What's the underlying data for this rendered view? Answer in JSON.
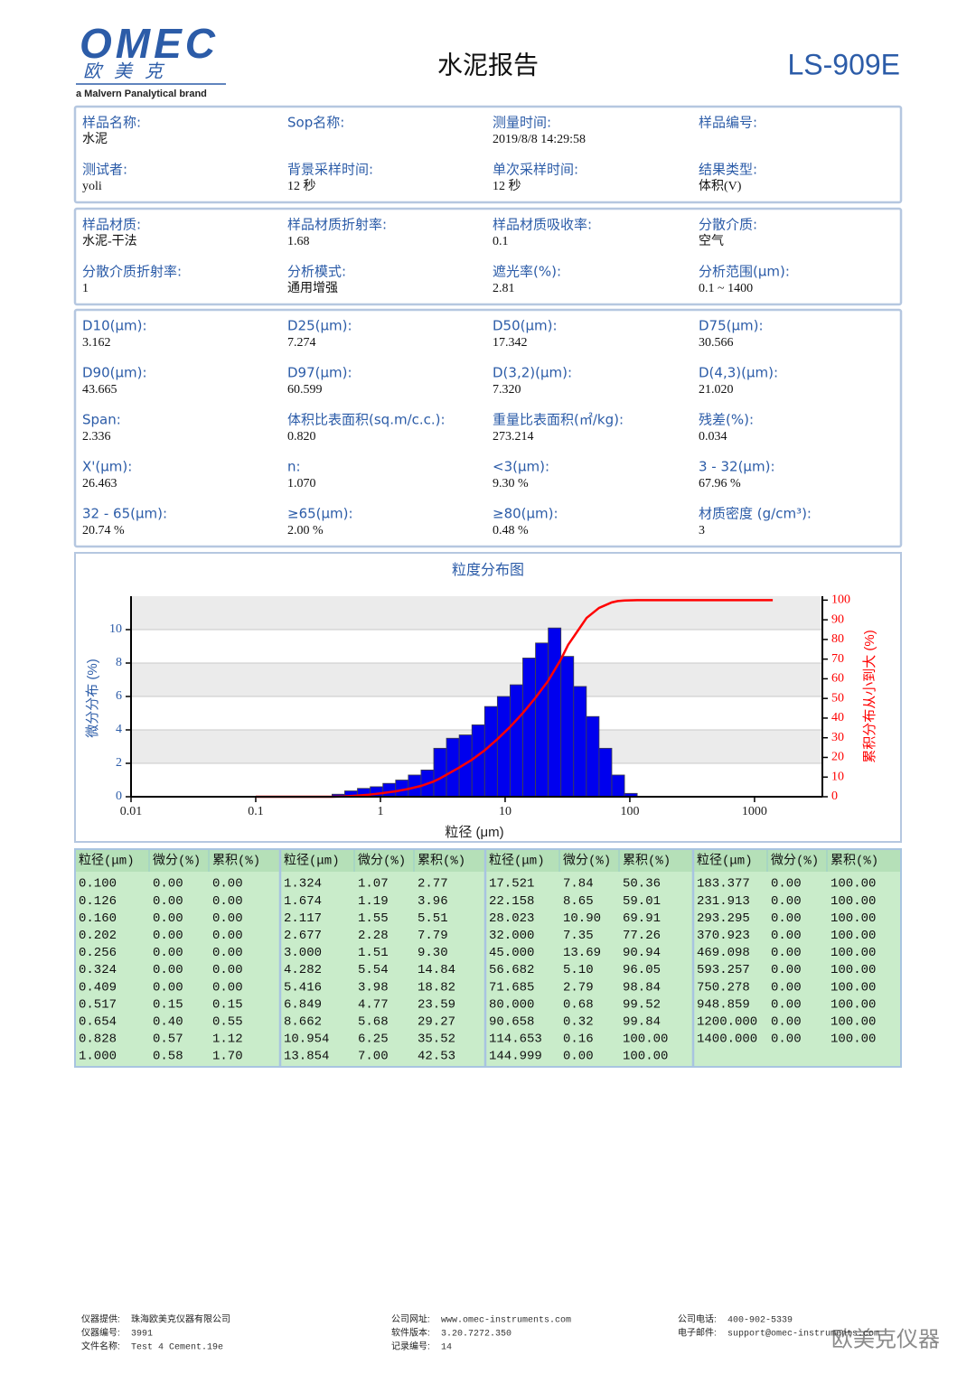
{
  "header": {
    "logo": "OMEC",
    "logo_cn": "欧美克",
    "brand": "a Malvern Panalytical brand",
    "title": "水泥报告",
    "model": "LS-909E"
  },
  "info": {
    "sections": [
      {
        "fields": [
          {
            "label": "样品名称:",
            "value": "水泥"
          },
          {
            "label": "Sop名称:",
            "value": ""
          },
          {
            "label": "测量时间:",
            "value": "2019/8/8 14:29:58"
          },
          {
            "label": "样品编号:",
            "value": ""
          },
          {
            "label": "测试者:",
            "value": "yoli"
          },
          {
            "label": "背景采样时间:",
            "value": "12 秒"
          },
          {
            "label": "单次采样时间:",
            "value": "12 秒"
          },
          {
            "label": "结果类型:",
            "value": "体积(V)"
          }
        ]
      },
      {
        "fields": [
          {
            "label": "样品材质:",
            "value": "水泥-干法"
          },
          {
            "label": "样品材质折射率:",
            "value": "1.68"
          },
          {
            "label": "样品材质吸收率:",
            "value": "0.1"
          },
          {
            "label": "分散介质:",
            "value": "空气"
          },
          {
            "label": "分散介质折射率:",
            "value": "1"
          },
          {
            "label": "分析模式:",
            "value": "通用增强"
          },
          {
            "label": "遮光率(%):",
            "value": "2.81"
          },
          {
            "label": "分析范围(μm):",
            "value": "0.1 ~ 1400"
          }
        ]
      },
      {
        "fields": [
          {
            "label": "D10(μm):",
            "value": "3.162"
          },
          {
            "label": "D25(μm):",
            "value": "7.274"
          },
          {
            "label": "D50(μm):",
            "value": "17.342"
          },
          {
            "label": "D75(μm):",
            "value": "30.566"
          },
          {
            "label": "D90(μm):",
            "value": "43.665"
          },
          {
            "label": "D97(μm):",
            "value": "60.599"
          },
          {
            "label": "D(3,2)(μm):",
            "value": "7.320"
          },
          {
            "label": "D(4,3)(μm):",
            "value": "21.020"
          },
          {
            "label": "Span:",
            "value": "2.336"
          },
          {
            "label": "体积比表面积(sq.m/c.c.):",
            "value": "0.820"
          },
          {
            "label": "重量比表面积(㎡/kg):",
            "value": "273.214"
          },
          {
            "label": "残差(%):",
            "value": "0.034"
          },
          {
            "label": "X'(μm):",
            "value": "26.463"
          },
          {
            "label": "n:",
            "value": "1.070"
          },
          {
            "label": "<3(μm):",
            "value": "9.30 %"
          },
          {
            "label": "3 - 32(μm):",
            "value": "67.96 %"
          },
          {
            "label": "32 - 65(μm):",
            "value": "20.74 %"
          },
          {
            "label": "≥65(μm):",
            "value": "2.00 %"
          },
          {
            "label": "≥80(μm):",
            "value": "0.48 %"
          },
          {
            "label": "材质密度 (g/cm³):",
            "value": "3"
          }
        ]
      }
    ]
  },
  "chart_data": {
    "type": "histogram",
    "title": "粒度分布图",
    "xlabel": "粒径 (μm)",
    "ylabel": "微分分布 (%)",
    "y2label": "累积分布从小到大 (%)",
    "log_x": true,
    "xlim": [
      0.01,
      3500
    ],
    "xticks": [
      0.01,
      0.1,
      1,
      10,
      100,
      1000
    ],
    "ylim": [
      0,
      12
    ],
    "yticks": [
      0,
      2,
      4,
      6,
      8,
      10
    ],
    "y2lim": [
      0,
      102
    ],
    "y2ticks": [
      0,
      10,
      20,
      30,
      40,
      50,
      60,
      70,
      80,
      90,
      100
    ],
    "bins": [
      0.409,
      0.517,
      0.654,
      0.828,
      1.047,
      1.324,
      1.674,
      2.117,
      2.677,
      3.385,
      4.282,
      5.416,
      6.849,
      8.662,
      10.954,
      13.854,
      17.521,
      22.158,
      28.023,
      35.44,
      44.82,
      56.682,
      71.685,
      90.658,
      114.653
    ],
    "series": [
      {
        "color": "#0000ee",
        "values": [
          0.15,
          0.35,
          0.5,
          0.6,
          0.8,
          1.0,
          1.3,
          1.6,
          2.9,
          3.5,
          3.7,
          4.3,
          5.4,
          6.0,
          6.7,
          8.3,
          9.2,
          10.1,
          8.4,
          6.6,
          4.8,
          2.9,
          1.3,
          0.2
        ]
      },
      {
        "axis": "y2",
        "color": "#ff0000",
        "x": [
          0.1,
          0.126,
          0.16,
          0.202,
          0.256,
          0.324,
          0.409,
          0.517,
          0.654,
          0.828,
          1.0,
          1.324,
          1.674,
          2.117,
          2.677,
          3.0,
          4.282,
          5.416,
          6.849,
          8.662,
          10.954,
          13.854,
          17.521,
          22.158,
          28.023,
          32.0,
          45.0,
          56.682,
          71.685,
          80.0,
          90.658,
          114.653,
          144.999,
          183.377,
          231.913,
          293.295,
          370.923,
          469.098,
          593.257,
          750.278,
          948.859,
          1200.0,
          1400.0
        ],
        "values": [
          0,
          0,
          0,
          0,
          0,
          0,
          0,
          0.15,
          0.55,
          1.12,
          1.7,
          2.77,
          3.96,
          5.51,
          7.79,
          9.3,
          14.84,
          18.82,
          23.59,
          29.27,
          35.52,
          42.53,
          50.36,
          59.01,
          69.91,
          77.26,
          90.94,
          96.05,
          98.84,
          99.52,
          99.84,
          100,
          100,
          100,
          100,
          100,
          100,
          100,
          100,
          100,
          100,
          100,
          100
        ]
      }
    ]
  },
  "table": {
    "columns": [
      "粒径(μm)",
      "微分(%)",
      "累积(%)"
    ],
    "groups": [
      {
        "rows": [
          [
            "0.100",
            "0.00",
            "0.00"
          ],
          [
            "0.126",
            "0.00",
            "0.00"
          ],
          [
            "0.160",
            "0.00",
            "0.00"
          ],
          [
            "0.202",
            "0.00",
            "0.00"
          ],
          [
            "0.256",
            "0.00",
            "0.00"
          ],
          [
            "0.324",
            "0.00",
            "0.00"
          ],
          [
            "0.409",
            "0.00",
            "0.00"
          ],
          [
            "0.517",
            "0.15",
            "0.15"
          ],
          [
            "0.654",
            "0.40",
            "0.55"
          ],
          [
            "0.828",
            "0.57",
            "1.12"
          ],
          [
            "1.000",
            "0.58",
            "1.70"
          ]
        ]
      },
      {
        "rows": [
          [
            "1.324",
            "1.07",
            "2.77"
          ],
          [
            "1.674",
            "1.19",
            "3.96"
          ],
          [
            "2.117",
            "1.55",
            "5.51"
          ],
          [
            "2.677",
            "2.28",
            "7.79"
          ],
          [
            "3.000",
            "1.51",
            "9.30"
          ],
          [
            "4.282",
            "5.54",
            "14.84"
          ],
          [
            "5.416",
            "3.98",
            "18.82"
          ],
          [
            "6.849",
            "4.77",
            "23.59"
          ],
          [
            "8.662",
            "5.68",
            "29.27"
          ],
          [
            "10.954",
            "6.25",
            "35.52"
          ],
          [
            "13.854",
            "7.00",
            "42.53"
          ]
        ]
      },
      {
        "rows": [
          [
            "17.521",
            "7.84",
            "50.36"
          ],
          [
            "22.158",
            "8.65",
            "59.01"
          ],
          [
            "28.023",
            "10.90",
            "69.91"
          ],
          [
            "32.000",
            "7.35",
            "77.26"
          ],
          [
            "45.000",
            "13.69",
            "90.94"
          ],
          [
            "56.682",
            "5.10",
            "96.05"
          ],
          [
            "71.685",
            "2.79",
            "98.84"
          ],
          [
            "80.000",
            "0.68",
            "99.52"
          ],
          [
            "90.658",
            "0.32",
            "99.84"
          ],
          [
            "114.653",
            "0.16",
            "100.00"
          ],
          [
            "144.999",
            "0.00",
            "100.00"
          ]
        ]
      },
      {
        "rows": [
          [
            "183.377",
            "0.00",
            "100.00"
          ],
          [
            "231.913",
            "0.00",
            "100.00"
          ],
          [
            "293.295",
            "0.00",
            "100.00"
          ],
          [
            "370.923",
            "0.00",
            "100.00"
          ],
          [
            "469.098",
            "0.00",
            "100.00"
          ],
          [
            "593.257",
            "0.00",
            "100.00"
          ],
          [
            "750.278",
            "0.00",
            "100.00"
          ],
          [
            "948.859",
            "0.00",
            "100.00"
          ],
          [
            "1200.000",
            "0.00",
            "100.00"
          ],
          [
            "1400.000",
            "0.00",
            "100.00"
          ]
        ]
      }
    ]
  },
  "footer": {
    "columns": [
      [
        {
          "label": "仪器提供:",
          "value": "珠海欧美克仪器有限公司"
        },
        {
          "label": "仪器编号:",
          "value": "3991"
        },
        {
          "label": "文件名称:",
          "value": "Test 4 Cement.19e"
        }
      ],
      [
        {
          "label": "公司网址:",
          "value": "www.omec-instruments.com"
        },
        {
          "label": "软件版本:",
          "value": "3.20.7272.350"
        },
        {
          "label": "记录编号:",
          "value": "14"
        }
      ],
      [
        {
          "label": "公司电话:",
          "value": "400-902-5339"
        },
        {
          "label": "电子邮件:",
          "value": "support@omec-instruments.com"
        }
      ]
    ],
    "watermark": "欧美克仪器"
  }
}
